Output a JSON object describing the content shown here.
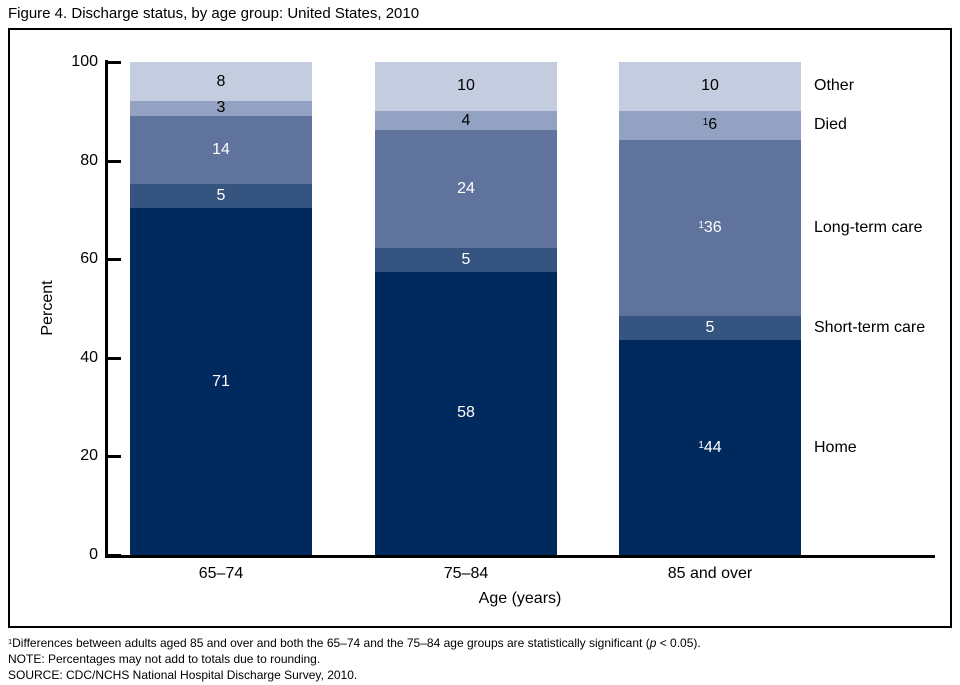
{
  "chart_data": {
    "type": "bar",
    "variant": "stacked-vertical",
    "title": "Figure 4. Discharge status, by age group: United States, 2010",
    "xlabel": "Age (years)",
    "ylabel": "Percent",
    "ylim": [
      0,
      100
    ],
    "yticks": [
      0,
      20,
      40,
      60,
      80,
      100
    ],
    "grid": "off",
    "legend_position": "right-of-last-bar",
    "footnote_marker": "1",
    "categories": [
      "65–74",
      "75–84",
      "85 and over"
    ],
    "series": [
      {
        "name": "Home",
        "color": "#002a5e",
        "label_color": "#ffffff",
        "values": [
          71,
          58,
          44
        ],
        "footnote_flags": [
          false,
          false,
          true
        ]
      },
      {
        "name": "Short-term care",
        "color": "#365480",
        "label_color": "#ffffff",
        "values": [
          5,
          5,
          5
        ],
        "footnote_flags": [
          false,
          false,
          false
        ]
      },
      {
        "name": "Long-term care",
        "color": "#5f739d",
        "label_color": "#ffffff",
        "values": [
          14,
          24,
          36
        ],
        "footnote_flags": [
          false,
          false,
          true
        ]
      },
      {
        "name": "Died",
        "color": "#93a2c3",
        "label_color": "#000000",
        "values": [
          3,
          4,
          6
        ],
        "footnote_flags": [
          false,
          false,
          true
        ]
      },
      {
        "name": "Other",
        "color": "#c4cce0",
        "label_color": "#000000",
        "values": [
          8,
          10,
          10
        ],
        "footnote_flags": [
          false,
          false,
          false
        ]
      }
    ]
  },
  "footnotes": {
    "note1": {
      "sup": "1",
      "before_p": "Differences between adults aged 85 and over and both the 65–74 and the 75–84 age groups are statistically significant (",
      "p": "p",
      "after_p": " < 0.05)."
    },
    "note2": "NOTE: Percentages may not add to totals due to rounding.",
    "note3": "SOURCE: CDC/NCHS National Hospital Discharge Survey, 2010."
  }
}
